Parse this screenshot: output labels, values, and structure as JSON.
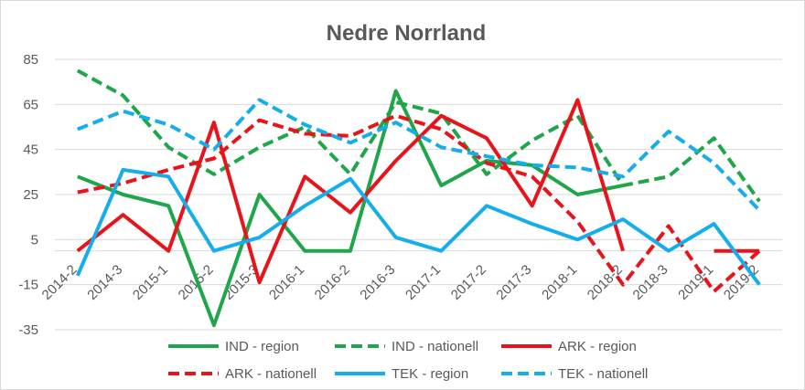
{
  "chart_data": {
    "type": "line",
    "title": "Nedre Norrland",
    "xlabel": "",
    "ylabel": "",
    "ylim": [
      -35,
      85
    ],
    "yticks": [
      85,
      65,
      45,
      25,
      5,
      -15,
      -35
    ],
    "grid": true,
    "legend_position": "bottom",
    "x": [
      "2014-2",
      "2014-3",
      "2015-1",
      "2015-2",
      "2015-3",
      "2016-1",
      "2016-2",
      "2016-3",
      "2017-1",
      "2017-2",
      "2017-3",
      "2018-1",
      "2018-2",
      "2018-3",
      "2019-1",
      "2019-2"
    ],
    "series": [
      {
        "name": "IND - region",
        "color": "#1fa64a",
        "dash": "solid",
        "values": [
          33,
          25,
          20,
          -33,
          25,
          0,
          0,
          71,
          29,
          40,
          38,
          25,
          29,
          null,
          null,
          null
        ]
      },
      {
        "name": "IND - nationell",
        "color": "#1fa64a",
        "dash": "dashed",
        "values": [
          80,
          69,
          46,
          34,
          46,
          55,
          34,
          66,
          61,
          34,
          49,
          60,
          29,
          33,
          50,
          22
        ]
      },
      {
        "name": "ARK - region",
        "color": "#e8141b",
        "dash": "solid",
        "values": [
          0,
          16,
          0,
          57,
          -14,
          33,
          17,
          40,
          60,
          50,
          20,
          67,
          0,
          null,
          0,
          0
        ]
      },
      {
        "name": "ARK - nationell",
        "color": "#e8141b",
        "dash": "dashed",
        "values": [
          26,
          30,
          36,
          41,
          58,
          52,
          51,
          60,
          54,
          39,
          33,
          13,
          -15,
          11,
          -18,
          0
        ]
      },
      {
        "name": "TEK - region",
        "color": "#16aeea",
        "dash": "solid",
        "values": [
          -11,
          36,
          33,
          0,
          6,
          20,
          32,
          6,
          0,
          20,
          12,
          5,
          14,
          0,
          12,
          -15
        ]
      },
      {
        "name": "TEK - nationell",
        "color": "#16aeea",
        "dash": "dashed",
        "values": [
          54,
          62,
          56,
          45,
          67,
          56,
          48,
          57,
          46,
          42,
          38,
          37,
          33,
          53,
          39,
          18
        ]
      }
    ]
  }
}
